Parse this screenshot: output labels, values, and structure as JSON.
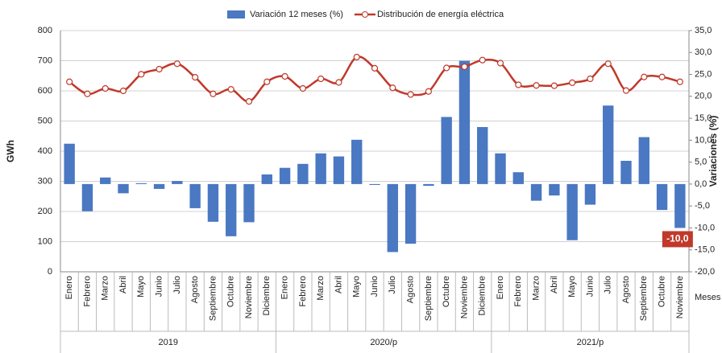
{
  "chart_data": {
    "type": "combo",
    "y_label": "GWh",
    "y2_label": "Variaciones  (%)",
    "x_label": "Meses",
    "categories": [
      "Enero",
      "Febrero",
      "Marzo",
      "Abril",
      "Mayo",
      "Junio",
      "Julio",
      "Agosto",
      "Septiembre",
      "Octubre",
      "Noviembre",
      "Diciembre",
      "Enero",
      "Febrero",
      "Marzo",
      "Abril",
      "Mayo",
      "Junio",
      "Julio",
      "Agosto",
      "Septiembre",
      "Octubre",
      "Noviembre",
      "Diciembre",
      "Enero",
      "Febrero",
      "Marzo",
      "Abril",
      "Mayo",
      "Junio",
      "Julio",
      "Agosto",
      "Septiembre",
      "Octubre",
      "Noviembre"
    ],
    "x_groups": [
      "2019",
      "2020/p",
      "2021/p"
    ],
    "series": [
      {
        "name": "Variación 12 meses (%)",
        "type": "bar",
        "axis": "y2",
        "color": "#4a78c2",
        "values": [
          9.2,
          -6.2,
          1.5,
          -2.1,
          0.2,
          -1.1,
          0.7,
          -5.5,
          -8.6,
          -11.9,
          -8.7,
          2.2,
          3.7,
          4.6,
          7.0,
          6.3,
          10.1,
          -0.2,
          -15.5,
          -13.6,
          -0.4,
          15.3,
          28.1,
          13.0,
          7.0,
          2.7,
          -3.8,
          -2.6,
          -12.8,
          -4.7,
          17.9,
          5.3,
          10.7,
          -5.9,
          -10.0
        ],
        "value_labels": [
          null,
          null,
          null,
          null,
          null,
          null,
          null,
          null,
          null,
          null,
          null,
          null,
          null,
          null,
          null,
          null,
          null,
          null,
          null,
          null,
          null,
          null,
          null,
          null,
          null,
          null,
          null,
          null,
          null,
          null,
          null,
          null,
          null,
          null,
          "-10,0"
        ]
      },
      {
        "name": "Distribución de energía eléctrica",
        "type": "line",
        "axis": "y",
        "color": "#c0392b",
        "values": [
          630,
          590,
          608,
          600,
          655,
          672,
          690,
          645,
          590,
          605,
          565,
          630,
          648,
          608,
          640,
          628,
          712,
          675,
          610,
          588,
          598,
          676,
          680,
          702,
          692,
          620,
          618,
          617,
          627,
          640,
          690,
          601,
          646,
          646,
          630
        ]
      }
    ],
    "ylim": [
      0,
      800
    ],
    "yticks": [
      0,
      100,
      200,
      300,
      400,
      500,
      600,
      700,
      800
    ],
    "y2lim": [
      -20,
      35
    ],
    "y2ticks": [
      {
        "value": -20,
        "label": "-20,0"
      },
      {
        "value": -15,
        "label": "-15,0"
      },
      {
        "value": -10,
        "label": "-10,0"
      },
      {
        "value": -5,
        "label": "-5,0"
      },
      {
        "value": 0,
        "label": "0,0"
      },
      {
        "value": 5,
        "label": "5,0"
      },
      {
        "value": 10,
        "label": "10,0"
      },
      {
        "value": 15,
        "label": "15,0"
      },
      {
        "value": 20,
        "label": "20,0"
      },
      {
        "value": 25,
        "label": "25,0"
      },
      {
        "value": 30,
        "label": "30,0"
      },
      {
        "value": 35,
        "label": "35,0"
      }
    ],
    "grid": true,
    "legend": "top"
  }
}
